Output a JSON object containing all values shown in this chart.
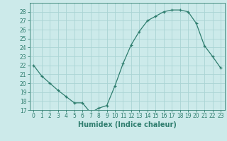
{
  "x": [
    0,
    1,
    2,
    3,
    4,
    5,
    6,
    7,
    8,
    9,
    10,
    11,
    12,
    13,
    14,
    15,
    16,
    17,
    18,
    19,
    20,
    21,
    22,
    23
  ],
  "y": [
    22.0,
    20.8,
    20.0,
    19.2,
    18.5,
    17.8,
    17.8,
    16.7,
    17.2,
    17.5,
    19.7,
    22.2,
    24.3,
    25.8,
    27.0,
    27.5,
    28.0,
    28.2,
    28.2,
    28.0,
    26.7,
    24.2,
    23.0,
    21.7
  ],
  "line_color": "#2e7d6e",
  "marker": "+",
  "marker_size": 3.5,
  "marker_linewidth": 0.9,
  "bg_color": "#cceaea",
  "grid_color": "#aad4d4",
  "xlabel": "Humidex (Indice chaleur)",
  "ylim": [
    17,
    29
  ],
  "xlim": [
    -0.5,
    23.5
  ],
  "yticks": [
    17,
    18,
    19,
    20,
    21,
    22,
    23,
    24,
    25,
    26,
    27,
    28
  ],
  "xticks": [
    0,
    1,
    2,
    3,
    4,
    5,
    6,
    7,
    8,
    9,
    10,
    11,
    12,
    13,
    14,
    15,
    16,
    17,
    18,
    19,
    20,
    21,
    22,
    23
  ],
  "tick_fontsize": 5.5,
  "xlabel_fontsize": 7.0,
  "axis_color": "#2e7d6e",
  "linewidth": 0.9
}
